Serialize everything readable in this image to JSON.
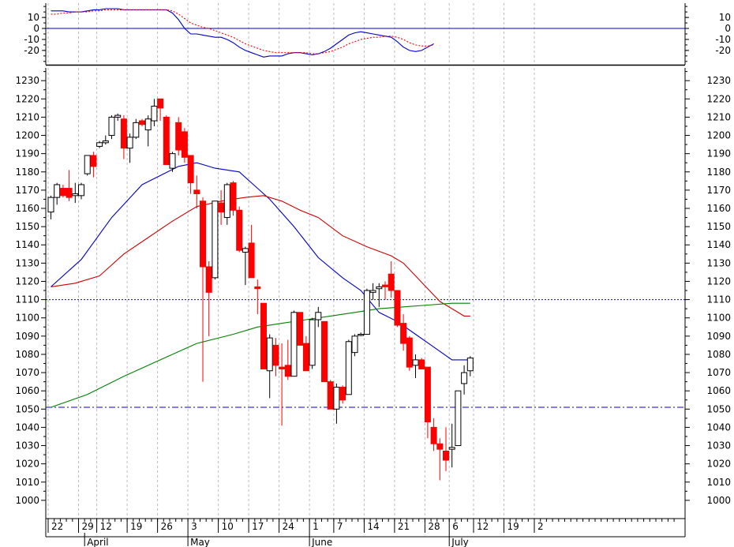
{
  "chart_data": [
    {
      "type": "line",
      "panel": "oscillator",
      "y_ticks": [
        "10",
        "0",
        "-10",
        "-20"
      ],
      "ylim": [
        -33,
        23
      ],
      "zero_line": 0,
      "series": [
        {
          "color": "#0000cc",
          "style": "solid",
          "values": [
            16,
            16,
            16,
            15,
            15,
            15,
            16,
            17,
            17,
            18,
            18,
            18,
            17,
            17,
            17,
            17,
            17,
            17,
            17,
            17,
            14,
            8,
            0,
            -5,
            -5,
            -6,
            -7,
            -8,
            -8,
            -10,
            -13,
            -17,
            -20,
            -22,
            -24,
            -26,
            -25,
            -25,
            -25,
            -23,
            -22,
            -22,
            -23,
            -24,
            -23,
            -21,
            -18,
            -14,
            -10,
            -6,
            -4,
            -3,
            -4,
            -5,
            -6,
            -7,
            -8,
            -12,
            -17,
            -20,
            -21,
            -20,
            -17,
            -14
          ]
        },
        {
          "color": "#ff0000",
          "style": "dotted",
          "values": [
            13,
            13,
            14,
            14,
            15,
            15,
            15,
            16,
            16,
            17,
            17,
            17,
            17,
            17,
            17,
            17,
            17,
            17,
            17,
            17,
            16,
            13,
            9,
            5,
            3,
            1,
            0,
            -2,
            -4,
            -6,
            -8,
            -11,
            -14,
            -16,
            -18,
            -20,
            -21,
            -22,
            -22,
            -22,
            -22,
            -22,
            -22,
            -23,
            -23,
            -22,
            -21,
            -19,
            -17,
            -14,
            -12,
            -10,
            -9,
            -8,
            -8,
            -7,
            -7,
            -8,
            -10,
            -13,
            -15,
            -16,
            -16,
            -15
          ]
        }
      ]
    },
    {
      "type": "candlestick",
      "panel": "price",
      "ylim": [
        990,
        1237
      ],
      "y_ticks": [
        1000,
        1010,
        1020,
        1030,
        1040,
        1050,
        1060,
        1070,
        1080,
        1090,
        1100,
        1110,
        1120,
        1130,
        1140,
        1150,
        1160,
        1170,
        1180,
        1190,
        1200,
        1210,
        1220,
        1230
      ],
      "x_ticks": [
        {
          "label": "22",
          "day": 0
        },
        {
          "label": "29",
          "day": 5
        },
        {
          "label": "12",
          "day": 8
        },
        {
          "label": "19",
          "day": 13
        },
        {
          "label": "26",
          "day": 18
        },
        {
          "label": "3",
          "day": 23
        },
        {
          "label": "10",
          "day": 28
        },
        {
          "label": "17",
          "day": 33
        },
        {
          "label": "24",
          "day": 38
        },
        {
          "label": "1",
          "day": 43
        },
        {
          "label": "7",
          "day": 47
        },
        {
          "label": "14",
          "day": 52
        },
        {
          "label": "21",
          "day": 57
        },
        {
          "label": "28",
          "day": 62
        },
        {
          "label": "6",
          "day": 66
        },
        {
          "label": "12",
          "day": 70
        },
        {
          "label": "19",
          "day": 75
        },
        {
          "label": "2",
          "day": 80
        }
      ],
      "month_labels": [
        {
          "label": "April",
          "day": 6
        },
        {
          "label": "May",
          "day": 23
        },
        {
          "label": "June",
          "day": 43
        },
        {
          "label": "July",
          "day": 66
        }
      ],
      "reference_lines": [
        {
          "value": 1110,
          "color": "#0000cc",
          "style": "dotted"
        },
        {
          "value": 1051,
          "color": "#0000cc",
          "style": "dashdot"
        }
      ],
      "candles": [
        {
          "day": 0,
          "o": 1158,
          "h": 1167,
          "l": 1154,
          "c": 1166
        },
        {
          "day": 1,
          "o": 1166,
          "h": 1174,
          "l": 1162,
          "c": 1173
        },
        {
          "day": 2,
          "o": 1171,
          "h": 1173,
          "l": 1166,
          "c": 1167
        },
        {
          "day": 3,
          "o": 1171,
          "h": 1181,
          "l": 1164,
          "c": 1166
        },
        {
          "day": 4,
          "o": 1167,
          "h": 1174,
          "l": 1163,
          "c": 1168
        },
        {
          "day": 5,
          "o": 1167,
          "h": 1174,
          "l": 1165,
          "c": 1173
        },
        {
          "day": 6,
          "o": 1179,
          "h": 1189,
          "l": 1178,
          "c": 1189
        },
        {
          "day": 7,
          "o": 1189,
          "h": 1191,
          "l": 1177,
          "c": 1183
        },
        {
          "day": 8,
          "o": 1194,
          "h": 1197,
          "l": 1193,
          "c": 1196
        },
        {
          "day": 9,
          "o": 1196,
          "h": 1200,
          "l": 1195,
          "c": 1197
        },
        {
          "day": 10,
          "o": 1200,
          "h": 1211,
          "l": 1198,
          "c": 1210
        },
        {
          "day": 11,
          "o": 1210,
          "h": 1212,
          "l": 1208,
          "c": 1211
        },
        {
          "day": 12,
          "o": 1209,
          "h": 1211,
          "l": 1187,
          "c": 1193
        },
        {
          "day": 13,
          "o": 1193,
          "h": 1201,
          "l": 1185,
          "c": 1199
        },
        {
          "day": 14,
          "o": 1199,
          "h": 1209,
          "l": 1198,
          "c": 1207
        },
        {
          "day": 15,
          "o": 1208,
          "h": 1209,
          "l": 1205,
          "c": 1206
        },
        {
          "day": 16,
          "o": 1203,
          "h": 1211,
          "l": 1194,
          "c": 1209
        },
        {
          "day": 17,
          "o": 1208,
          "h": 1220,
          "l": 1205,
          "c": 1216
        },
        {
          "day": 18,
          "o": 1220,
          "h": 1220,
          "l": 1208,
          "c": 1215
        },
        {
          "day": 19,
          "o": 1210,
          "h": 1211,
          "l": 1184,
          "c": 1184
        },
        {
          "day": 20,
          "o": 1182,
          "h": 1191,
          "l": 1180,
          "c": 1190
        },
        {
          "day": 21,
          "o": 1207,
          "h": 1210,
          "l": 1189,
          "c": 1192
        },
        {
          "day": 22,
          "o": 1202,
          "h": 1204,
          "l": 1185,
          "c": 1188
        },
        {
          "day": 23,
          "o": 1189,
          "h": 1189,
          "l": 1168,
          "c": 1174
        },
        {
          "day": 24,
          "o": 1170,
          "h": 1178,
          "l": 1160,
          "c": 1168
        },
        {
          "day": 25,
          "o": 1164,
          "h": 1166,
          "l": 1065,
          "c": 1128
        },
        {
          "day": 26,
          "o": 1128,
          "h": 1131,
          "l": 1090,
          "c": 1114
        },
        {
          "day": 27,
          "o": 1122,
          "h": 1164,
          "l": 1121,
          "c": 1164
        },
        {
          "day": 28,
          "o": 1163,
          "h": 1170,
          "l": 1151,
          "c": 1158
        },
        {
          "day": 29,
          "o": 1155,
          "h": 1174,
          "l": 1151,
          "c": 1173
        },
        {
          "day": 30,
          "o": 1174,
          "h": 1175,
          "l": 1156,
          "c": 1159
        },
        {
          "day": 31,
          "o": 1159,
          "h": 1161,
          "l": 1136,
          "c": 1137
        },
        {
          "day": 32,
          "o": 1136,
          "h": 1139,
          "l": 1118,
          "c": 1138
        },
        {
          "day": 33,
          "o": 1141,
          "h": 1151,
          "l": 1123,
          "c": 1122
        },
        {
          "day": 34,
          "o": 1117,
          "h": 1121,
          "l": 1102,
          "c": 1116
        },
        {
          "day": 35,
          "o": 1108,
          "h": 1108,
          "l": 1072,
          "c": 1072
        },
        {
          "day": 36,
          "o": 1071,
          "h": 1091,
          "l": 1056,
          "c": 1089
        },
        {
          "day": 37,
          "o": 1085,
          "h": 1089,
          "l": 1068,
          "c": 1074
        },
        {
          "day": 38,
          "o": 1073,
          "h": 1086,
          "l": 1041,
          "c": 1072
        },
        {
          "day": 39,
          "o": 1074,
          "h": 1088,
          "l": 1066,
          "c": 1068
        },
        {
          "day": 40,
          "o": 1068,
          "h": 1104,
          "l": 1068,
          "c": 1103
        },
        {
          "day": 41,
          "o": 1103,
          "h": 1103,
          "l": 1085,
          "c": 1085
        },
        {
          "day": 42,
          "o": 1086,
          "h": 1090,
          "l": 1071,
          "c": 1071
        },
        {
          "day": 43,
          "o": 1074,
          "h": 1100,
          "l": 1072,
          "c": 1099
        },
        {
          "day": 44,
          "o": 1099,
          "h": 1106,
          "l": 1095,
          "c": 1103
        },
        {
          "day": 45,
          "o": 1098,
          "h": 1098,
          "l": 1065,
          "c": 1065
        },
        {
          "day": 46,
          "o": 1065,
          "h": 1066,
          "l": 1050,
          "c": 1050
        },
        {
          "day": 47,
          "o": 1050,
          "h": 1064,
          "l": 1042,
          "c": 1062
        },
        {
          "day": 48,
          "o": 1062,
          "h": 1063,
          "l": 1053,
          "c": 1055
        },
        {
          "day": 49,
          "o": 1058,
          "h": 1088,
          "l": 1058,
          "c": 1087
        },
        {
          "day": 50,
          "o": 1081,
          "h": 1091,
          "l": 1079,
          "c": 1090
        },
        {
          "day": 51,
          "o": 1091,
          "h": 1092,
          "l": 1090,
          "c": 1091
        },
        {
          "day": 52,
          "o": 1091,
          "h": 1116,
          "l": 1091,
          "c": 1115
        },
        {
          "day": 53,
          "o": 1114,
          "h": 1119,
          "l": 1110,
          "c": 1115
        },
        {
          "day": 54,
          "o": 1116,
          "h": 1119,
          "l": 1106,
          "c": 1117
        },
        {
          "day": 55,
          "o": 1118,
          "h": 1120,
          "l": 1110,
          "c": 1117
        },
        {
          "day": 56,
          "o": 1124,
          "h": 1131,
          "l": 1111,
          "c": 1115
        },
        {
          "day": 57,
          "o": 1115,
          "h": 1115,
          "l": 1095,
          "c": 1096
        },
        {
          "day": 58,
          "o": 1097,
          "h": 1102,
          "l": 1082,
          "c": 1086
        },
        {
          "day": 59,
          "o": 1089,
          "h": 1090,
          "l": 1071,
          "c": 1073
        },
        {
          "day": 60,
          "o": 1074,
          "h": 1080,
          "l": 1067,
          "c": 1077
        },
        {
          "day": 61,
          "o": 1077,
          "h": 1078,
          "l": 1072,
          "c": 1072
        },
        {
          "day": 62,
          "o": 1073,
          "h": 1073,
          "l": 1034,
          "c": 1043
        },
        {
          "day": 63,
          "o": 1040,
          "h": 1045,
          "l": 1027,
          "c": 1031
        },
        {
          "day": 64,
          "o": 1031,
          "h": 1034,
          "l": 1011,
          "c": 1028
        },
        {
          "day": 65,
          "o": 1027,
          "h": 1040,
          "l": 1016,
          "c": 1022
        },
        {
          "day": 66,
          "o": 1028,
          "h": 1042,
          "l": 1018,
          "c": 1029
        },
        {
          "day": 67,
          "o": 1030,
          "h": 1060,
          "l": 1030,
          "c": 1060
        },
        {
          "day": 68,
          "o": 1064,
          "h": 1074,
          "l": 1058,
          "c": 1070
        },
        {
          "day": 69,
          "o": 1071,
          "h": 1079,
          "l": 1068,
          "c": 1078
        }
      ],
      "series": [
        {
          "color": "#0000cc",
          "points": [
            [
              0,
              1117
            ],
            [
              5,
              1132
            ],
            [
              10,
              1155
            ],
            [
              15,
              1173
            ],
            [
              18,
              1178
            ],
            [
              21,
              1183
            ],
            [
              24,
              1185
            ],
            [
              27,
              1182
            ],
            [
              31,
              1180
            ],
            [
              33,
              1174
            ],
            [
              36,
              1165
            ],
            [
              40,
              1150
            ],
            [
              44,
              1133
            ],
            [
              48,
              1122
            ],
            [
              51,
              1115
            ],
            [
              54,
              1103
            ],
            [
              57,
              1098
            ],
            [
              60,
              1091
            ],
            [
              63,
              1084
            ],
            [
              66,
              1077
            ],
            [
              68,
              1077
            ],
            [
              69,
              1077
            ]
          ]
        },
        {
          "color": "#cc0000",
          "points": [
            [
              0,
              1117
            ],
            [
              4,
              1119
            ],
            [
              8,
              1123
            ],
            [
              12,
              1135
            ],
            [
              16,
              1144
            ],
            [
              20,
              1153
            ],
            [
              24,
              1161
            ],
            [
              28,
              1164
            ],
            [
              32,
              1166
            ],
            [
              35,
              1167
            ],
            [
              38,
              1164
            ],
            [
              41,
              1159
            ],
            [
              44,
              1155
            ],
            [
              48,
              1145
            ],
            [
              52,
              1139
            ],
            [
              56,
              1134
            ],
            [
              58,
              1130
            ],
            [
              60,
              1123
            ],
            [
              62,
              1116
            ],
            [
              64,
              1109
            ],
            [
              66,
              1105
            ],
            [
              68,
              1101
            ],
            [
              69,
              1101
            ]
          ]
        },
        {
          "color": "#008000",
          "points": [
            [
              0,
              1051
            ],
            [
              6,
              1058
            ],
            [
              12,
              1068
            ],
            [
              18,
              1077
            ],
            [
              24,
              1086
            ],
            [
              30,
              1091
            ],
            [
              34,
              1095
            ],
            [
              38,
              1097
            ],
            [
              42,
              1099
            ],
            [
              46,
              1101
            ],
            [
              50,
              1103
            ],
            [
              54,
              1105
            ],
            [
              58,
              1106
            ],
            [
              62,
              1107
            ],
            [
              66,
              1108
            ],
            [
              69,
              1108
            ]
          ]
        }
      ]
    }
  ]
}
